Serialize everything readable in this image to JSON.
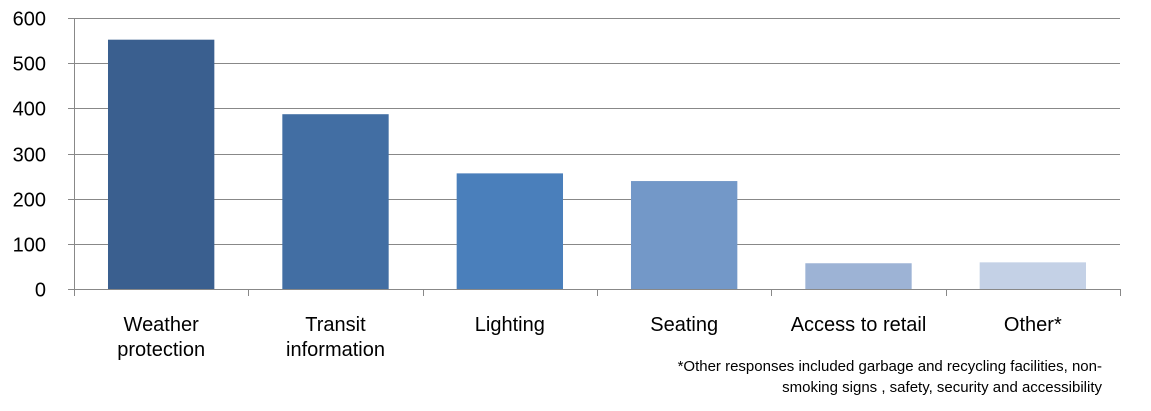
{
  "chart_data": {
    "type": "bar",
    "categories": [
      [
        "Weather",
        "protection"
      ],
      [
        "Transit",
        "information"
      ],
      [
        "Lighting"
      ],
      [
        "Seating"
      ],
      [
        "Access to retail"
      ],
      [
        "Other*"
      ]
    ],
    "values": [
      552,
      387,
      256,
      239,
      57,
      59
    ],
    "bar_colors": [
      "#3a5f8f",
      "#426ea3",
      "#4a7fbb",
      "#7398c8",
      "#9db3d5",
      "#c4d1e6"
    ],
    "yticks": [
      0,
      100,
      200,
      300,
      400,
      500,
      600
    ],
    "ylim": [
      0,
      600
    ],
    "gridlines": true,
    "legend": "none",
    "title": "",
    "xlabel": "",
    "ylabel": ""
  },
  "footnote": {
    "line1": "*Other responses included garbage and recycling facilities, non-",
    "line2": "smoking signs , safety,  security and accessibility"
  }
}
